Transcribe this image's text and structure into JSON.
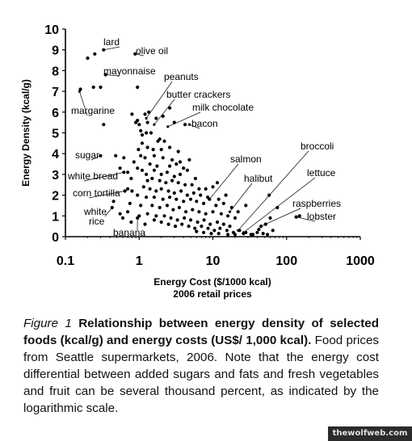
{
  "chart_data": {
    "type": "scatter",
    "title": "",
    "xlabel": "Energy Cost ($/1000 kcal)",
    "xlabel_sub": "2006 retail prices",
    "ylabel": "Energy Density (kcal/g)",
    "xscale": "log",
    "xlim": [
      0.1,
      1000
    ],
    "ylim": [
      0,
      10
    ],
    "xticks": [
      "0.1",
      "1",
      "10",
      "100",
      "1000"
    ],
    "yticks": [
      "0",
      "1",
      "2",
      "3",
      "4",
      "5",
      "6",
      "7",
      "8",
      "9",
      "10"
    ],
    "grid": false,
    "legend": "none",
    "annotations": [
      {
        "text": "lard",
        "x": 0.33,
        "y": 9.0
      },
      {
        "text": "olive oil",
        "x": 0.88,
        "y": 8.8
      },
      {
        "text": "mayonnaise",
        "x": 0.35,
        "y": 7.8
      },
      {
        "text": "peanuts",
        "x": 1.25,
        "y": 5.7
      },
      {
        "text": "butter crackers",
        "x": 1.6,
        "y": 5.4
      },
      {
        "text": "milk chocolate",
        "x": 2.45,
        "y": 5.3
      },
      {
        "text": "bacon",
        "x": 4.8,
        "y": 5.4
      },
      {
        "text": "margarine",
        "x": 0.155,
        "y": 7.0
      },
      {
        "text": "sugar",
        "x": 0.3,
        "y": 3.9
      },
      {
        "text": "white bread",
        "x": 0.62,
        "y": 3.1
      },
      {
        "text": "corn tortilla",
        "x": 0.64,
        "y": 2.2
      },
      {
        "text": "white rice",
        "x": 0.43,
        "y": 1.4
      },
      {
        "text": "banana",
        "x": 0.95,
        "y": 0.9
      },
      {
        "text": "salmon",
        "x": 9.0,
        "y": 1.8
      },
      {
        "text": "halibut",
        "x": 17.0,
        "y": 1.2
      },
      {
        "text": "broccoli",
        "x": 22.0,
        "y": 0.3
      },
      {
        "text": "lettuce",
        "x": 26.0,
        "y": 0.2
      },
      {
        "text": "raspberries",
        "x": 45.0,
        "y": 0.5
      },
      {
        "text": "lobster",
        "x": 135.0,
        "y": 0.95
      }
    ],
    "points": [
      [
        0.2,
        8.6
      ],
      [
        0.33,
        9.0
      ],
      [
        0.25,
        8.8
      ],
      [
        0.88,
        8.8
      ],
      [
        0.24,
        7.2
      ],
      [
        0.3,
        7.2
      ],
      [
        0.95,
        7.2
      ],
      [
        0.16,
        7.1
      ],
      [
        0.35,
        7.8
      ],
      [
        0.33,
        5.4
      ],
      [
        0.8,
        5.9
      ],
      [
        0.95,
        5.6
      ],
      [
        1.2,
        5.9
      ],
      [
        1.3,
        5.5
      ],
      [
        1.0,
        5.4
      ],
      [
        0.9,
        5.5
      ],
      [
        1.35,
        6.0
      ],
      [
        1.7,
        5.7
      ],
      [
        2.1,
        5.8
      ],
      [
        2.6,
        6.2
      ],
      [
        4.2,
        5.4
      ],
      [
        3.0,
        5.5
      ],
      [
        1.05,
        5.1
      ],
      [
        1.1,
        4.9
      ],
      [
        1.25,
        5.0
      ],
      [
        1.45,
        5.0
      ],
      [
        1.1,
        4.5
      ],
      [
        1.8,
        4.6
      ],
      [
        1.9,
        4.7
      ],
      [
        2.2,
        4.6
      ],
      [
        0.98,
        4.2
      ],
      [
        1.3,
        4.3
      ],
      [
        1.55,
        4.2
      ],
      [
        2.0,
        4.2
      ],
      [
        2.6,
        4.3
      ],
      [
        3.4,
        4.1
      ],
      [
        0.3,
        3.9
      ],
      [
        0.48,
        3.9
      ],
      [
        0.62,
        3.8
      ],
      [
        0.85,
        3.6
      ],
      [
        1.05,
        3.9
      ],
      [
        1.2,
        3.8
      ],
      [
        1.6,
        3.9
      ],
      [
        2.1,
        3.8
      ],
      [
        2.8,
        3.7
      ],
      [
        3.6,
        3.6
      ],
      [
        4.8,
        3.7
      ],
      [
        1.4,
        3.5
      ],
      [
        1.75,
        3.4
      ],
      [
        2.6,
        3.4
      ],
      [
        3.2,
        3.5
      ],
      [
        4.0,
        3.3
      ],
      [
        0.55,
        3.3
      ],
      [
        0.7,
        3.1
      ],
      [
        0.95,
        3.3
      ],
      [
        1.1,
        3.2
      ],
      [
        1.25,
        3.0
      ],
      [
        1.6,
        3.2
      ],
      [
        2.0,
        3.0
      ],
      [
        2.4,
        3.1
      ],
      [
        3.0,
        2.9
      ],
      [
        3.6,
        3.0
      ],
      [
        4.5,
        3.2
      ],
      [
        5.8,
        2.8
      ],
      [
        0.62,
        3.1
      ],
      [
        0.78,
        2.8
      ],
      [
        1.3,
        2.7
      ],
      [
        1.5,
        2.8
      ],
      [
        1.9,
        2.7
      ],
      [
        2.3,
        2.6
      ],
      [
        2.8,
        2.7
      ],
      [
        3.4,
        2.6
      ],
      [
        4.2,
        2.5
      ],
      [
        5.2,
        2.5
      ],
      [
        6.5,
        2.3
      ],
      [
        8.0,
        2.3
      ],
      [
        10.0,
        2.4
      ],
      [
        11.5,
        2.6
      ],
      [
        0.7,
        2.3
      ],
      [
        0.8,
        2.2
      ],
      [
        1.15,
        2.4
      ],
      [
        1.4,
        2.3
      ],
      [
        1.7,
        2.2
      ],
      [
        2.0,
        2.3
      ],
      [
        2.5,
        2.2
      ],
      [
        3.0,
        2.1
      ],
      [
        3.7,
        2.2
      ],
      [
        4.5,
        2.0
      ],
      [
        5.5,
        2.1
      ],
      [
        6.8,
        2.0
      ],
      [
        8.5,
        1.9
      ],
      [
        12.0,
        1.8
      ],
      [
        15.0,
        2.0
      ],
      [
        0.64,
        2.2
      ],
      [
        0.95,
        2.0
      ],
      [
        1.25,
        1.9
      ],
      [
        1.6,
        1.9
      ],
      [
        2.1,
        1.8
      ],
      [
        2.6,
        1.9
      ],
      [
        3.2,
        1.8
      ],
      [
        4.0,
        1.7
      ],
      [
        5.0,
        1.8
      ],
      [
        6.0,
        1.7
      ],
      [
        7.5,
        1.6
      ],
      [
        9.0,
        1.8
      ],
      [
        11.0,
        1.5
      ],
      [
        14.0,
        1.6
      ],
      [
        18.0,
        1.4
      ],
      [
        22.0,
        1.2
      ],
      [
        28.0,
        1.5
      ],
      [
        0.45,
        1.7
      ],
      [
        0.75,
        1.6
      ],
      [
        1.05,
        1.5
      ],
      [
        1.5,
        1.5
      ],
      [
        1.9,
        1.4
      ],
      [
        2.4,
        1.5
      ],
      [
        2.9,
        1.3
      ],
      [
        3.5,
        1.4
      ],
      [
        4.3,
        1.2
      ],
      [
        5.3,
        1.3
      ],
      [
        6.5,
        1.2
      ],
      [
        8.0,
        1.1
      ],
      [
        10.0,
        1.2
      ],
      [
        13.0,
        1.1
      ],
      [
        16.0,
        1.0
      ],
      [
        20.0,
        0.9
      ],
      [
        0.43,
        1.4
      ],
      [
        0.55,
        1.1
      ],
      [
        0.7,
        1.2
      ],
      [
        1.0,
        1.0
      ],
      [
        1.3,
        1.1
      ],
      [
        1.7,
        1.0
      ],
      [
        2.2,
        1.0
      ],
      [
        2.7,
        0.9
      ],
      [
        3.3,
        0.8
      ],
      [
        4.1,
        0.9
      ],
      [
        5.0,
        0.8
      ],
      [
        6.2,
        0.7
      ],
      [
        7.6,
        0.8
      ],
      [
        9.2,
        0.6
      ],
      [
        11.5,
        0.7
      ],
      [
        14.0,
        0.6
      ],
      [
        17.0,
        0.5
      ],
      [
        0.6,
        0.9
      ],
      [
        0.78,
        0.7
      ],
      [
        0.95,
        0.9
      ],
      [
        1.2,
        0.6
      ],
      [
        1.6,
        0.8
      ],
      [
        2.0,
        0.7
      ],
      [
        2.5,
        0.6
      ],
      [
        3.1,
        0.5
      ],
      [
        3.8,
        0.6
      ],
      [
        4.7,
        0.5
      ],
      [
        5.7,
        0.4
      ],
      [
        7.0,
        0.5
      ],
      [
        8.6,
        0.4
      ],
      [
        10.5,
        0.3
      ],
      [
        12.5,
        0.4
      ],
      [
        15.5,
        0.3
      ],
      [
        19.0,
        0.2
      ],
      [
        23.0,
        0.3
      ],
      [
        28.0,
        0.2
      ],
      [
        35.0,
        0.1
      ],
      [
        6.0,
        0.25
      ],
      [
        7.5,
        0.2
      ],
      [
        9.5,
        0.15
      ],
      [
        12.0,
        0.15
      ],
      [
        16.0,
        0.1
      ],
      [
        20.0,
        0.1
      ],
      [
        26.0,
        0.15
      ],
      [
        33.0,
        0.1
      ],
      [
        40.0,
        0.2
      ],
      [
        48.0,
        0.15
      ],
      [
        55.0,
        0.1
      ],
      [
        65.0,
        0.3
      ],
      [
        45.0,
        0.5
      ],
      [
        52.0,
        0.6
      ],
      [
        60.0,
        0.9
      ],
      [
        75.0,
        1.4
      ],
      [
        135.0,
        0.95
      ],
      [
        150.0,
        1.0
      ],
      [
        58.0,
        2.0
      ],
      [
        42.0,
        0.35
      ]
    ]
  },
  "caption": {
    "label": "Figure 1",
    "title": "Relationship between energy density of selected foods (kcal/g) and energy costs (US$/ 1,000 kcal).",
    "text": "Food prices from Seattle supermarkets, 2006. Note that the energy cost differential between added sugars and fats and fresh vegetables and fruit can be several thousand percent, as indicated by the logarithmic scale."
  },
  "watermark": "thewolfweb.com"
}
